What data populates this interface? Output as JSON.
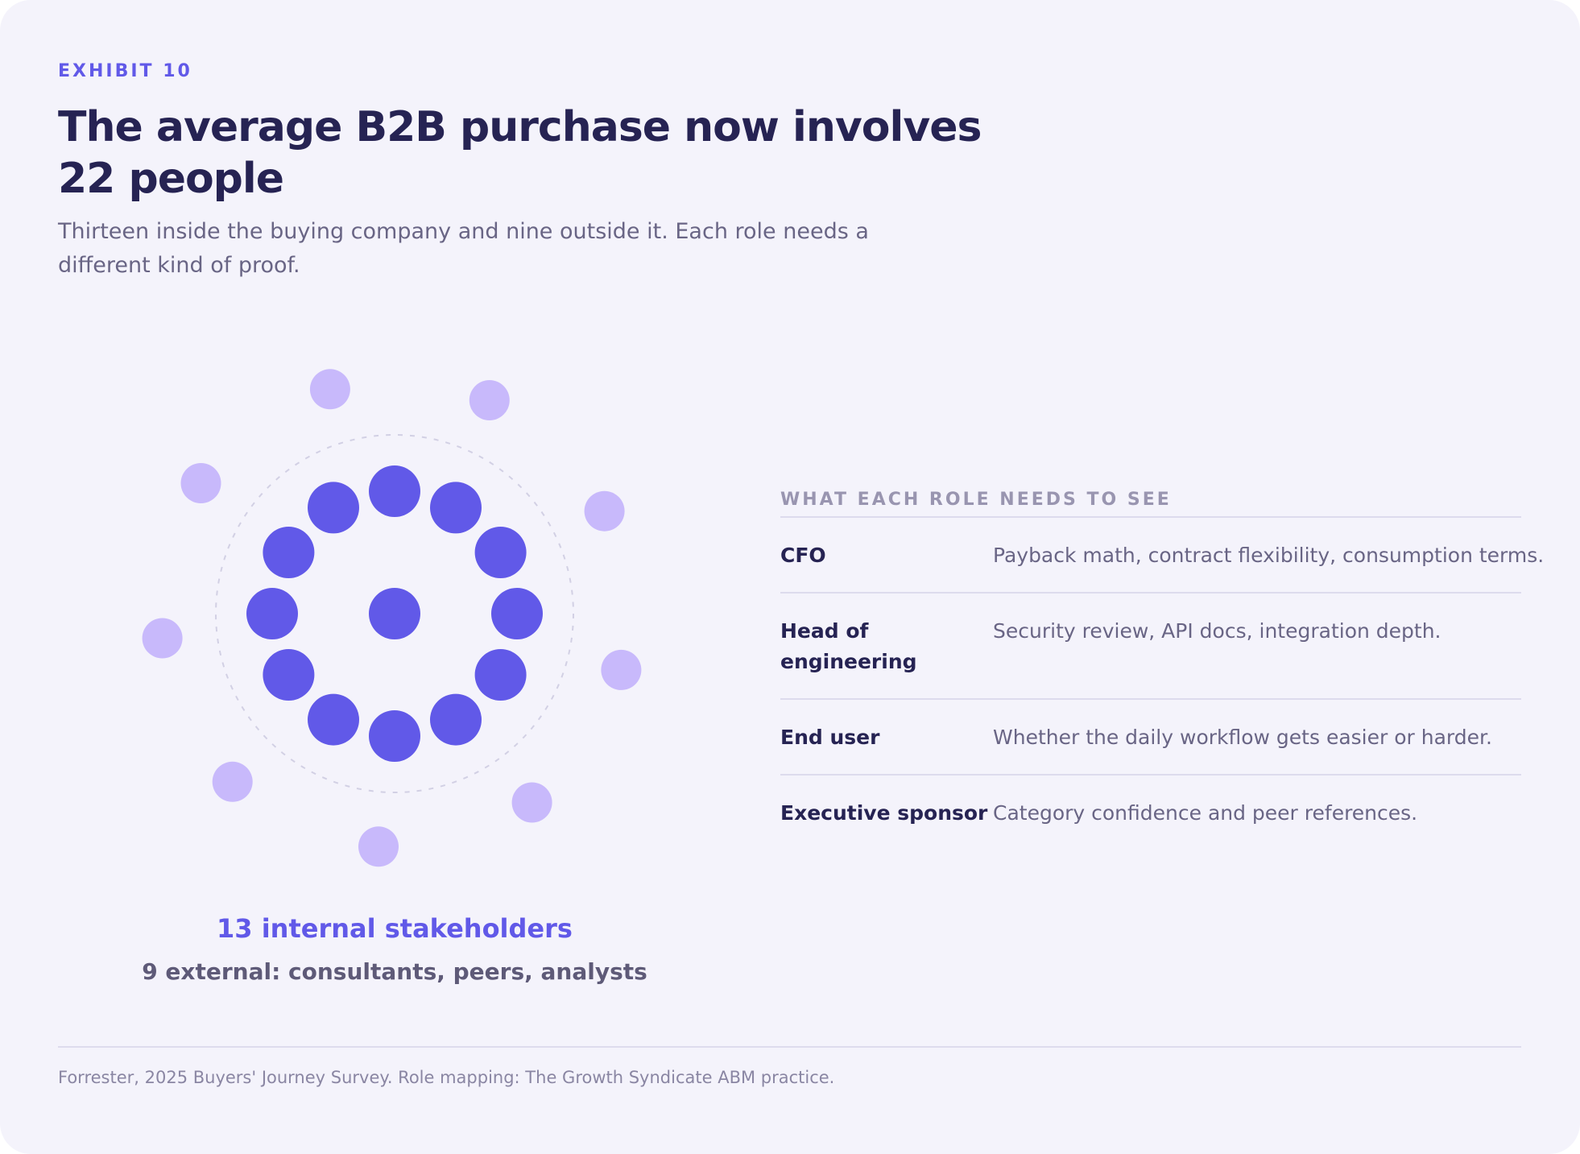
{
  "exhibit_label": "EXHIBIT 10",
  "title": "The average B2B purchase now involves 22 people",
  "subtitle": "Thirteen inside the buying company and nine outside it. Each role needs a different kind of proof.",
  "diagram": {
    "internal_count": 13,
    "external_count": 9,
    "internal_color": "#6159e8",
    "external_color": "#c8b9fb",
    "boundary_color": "#d2d0e4",
    "caption_primary": "13 internal stakeholders",
    "caption_secondary": "9 external: consultants, peers, analysts"
  },
  "roles_table": {
    "heading": "WHAT EACH ROLE NEEDS TO SEE",
    "rows": [
      {
        "role": "CFO",
        "need": "Payback math, contract flexibility, consumption terms."
      },
      {
        "role": "Head of engineering",
        "need": "Security review, API docs, integration depth."
      },
      {
        "role": "End user",
        "need": "Whether the daily workflow gets easier or harder."
      },
      {
        "role": "Executive sponsor",
        "need": "Category confidence and peer references."
      }
    ]
  },
  "source": "Forrester, 2025 Buyers' Journey Survey. Role mapping: The Growth Syndicate ABM practice.",
  "colors": {
    "background": "#f4f3fb",
    "accent": "#6159e8",
    "heading_text": "#262353",
    "body_text": "#696585"
  }
}
